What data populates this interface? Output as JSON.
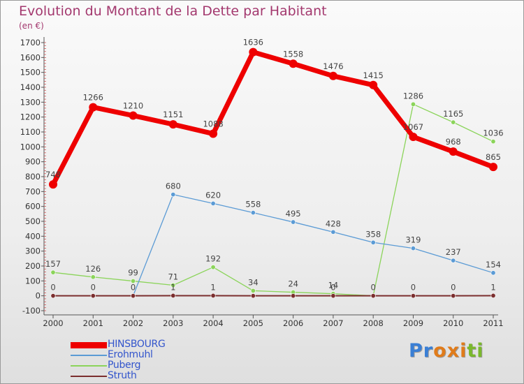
{
  "chart_data": {
    "type": "line",
    "title": "Evolution du Montant de la Dette par Habitant",
    "subtitle": "(en €)",
    "x": [
      "2000",
      "2001",
      "2002",
      "2003",
      "2004",
      "2005",
      "2006",
      "2007",
      "2008",
      "2009",
      "2010",
      "2011"
    ],
    "y_ticks": [
      "-100",
      "0",
      "100",
      "200",
      "300",
      "400",
      "500",
      "600",
      "700",
      "800",
      "900",
      "1000",
      "1100",
      "1200",
      "1300",
      "1400",
      "1500",
      "1600",
      "1700"
    ],
    "ylim": [
      -100,
      1700
    ],
    "grid": false,
    "legend_position": "bottom-left",
    "series": [
      {
        "name": "HINSBOURG",
        "color": "#ee0000",
        "values": [
          748,
          1266,
          1210,
          1151,
          1088,
          1636,
          1558,
          1476,
          1415,
          1067,
          968,
          865
        ],
        "labels": [
          "748",
          "1266",
          "1210",
          "1151",
          "1088",
          "1636",
          "1558",
          "1476",
          "1415",
          "1067",
          "968",
          "865"
        ]
      },
      {
        "name": "Erohmuhl",
        "color": "#5b9bd5",
        "values": [
          0,
          0,
          0,
          680,
          620,
          558,
          495,
          428,
          358,
          319,
          237,
          154
        ],
        "labels": [
          "",
          "",
          "",
          "680",
          "620",
          "558",
          "495",
          "428",
          "358",
          "319",
          "237",
          "154"
        ]
      },
      {
        "name": "Puberg",
        "color": "#8bd45a",
        "values": [
          157,
          126,
          99,
          71,
          192,
          34,
          24,
          14,
          0,
          1286,
          1165,
          1036
        ],
        "labels": [
          "157",
          "126",
          "99",
          "71",
          "192",
          "34",
          "24",
          "14",
          "",
          "1286",
          "1165",
          "1036"
        ]
      },
      {
        "name": "Struth",
        "color": "#7b2e2e",
        "values": [
          0,
          0,
          0,
          1,
          1,
          0,
          0,
          0,
          0,
          0,
          0,
          1
        ],
        "labels": [
          "0",
          "0",
          "0",
          "1",
          "1",
          "",
          "",
          "0",
          "0",
          "0",
          "0",
          "1"
        ]
      }
    ]
  },
  "logo": {
    "letters": [
      "P",
      "r",
      "o",
      "x",
      "i",
      "t",
      "i"
    ],
    "colors": [
      "#3a7fd5",
      "#3a7fd5",
      "#e07b1a",
      "#e07b1a",
      "#e07b1a",
      "#7ab82c",
      "#7ab82c"
    ]
  }
}
